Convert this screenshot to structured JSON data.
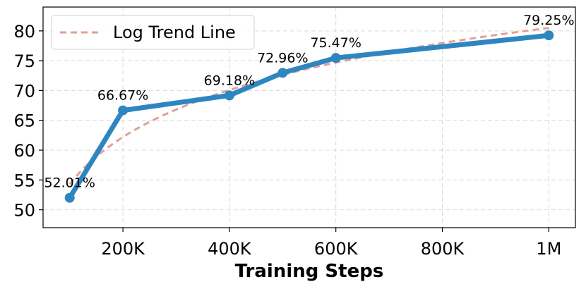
{
  "chart_data": {
    "type": "line",
    "xlabel": "Training Steps",
    "ylabel": "",
    "x_ticks": [
      {
        "value": 200000,
        "label": "200K"
      },
      {
        "value": 400000,
        "label": "400K"
      },
      {
        "value": 600000,
        "label": "600K"
      },
      {
        "value": 800000,
        "label": "800K"
      },
      {
        "value": 1000000,
        "label": "1M"
      }
    ],
    "y_ticks": [
      50,
      55,
      60,
      65,
      70,
      75,
      80
    ],
    "xlim": [
      50000,
      1050000
    ],
    "ylim": [
      47,
      84
    ],
    "grid": true,
    "legend_position": "top-left",
    "series": [
      {
        "color": "#2e86c1",
        "x": [
          100000,
          200000,
          400000,
          500000,
          600000,
          1000000
        ],
        "y": [
          52.01,
          66.67,
          69.18,
          72.96,
          75.47,
          79.25
        ],
        "labels": [
          "52.01%",
          "66.67%",
          "69.18%",
          "72.96%",
          "75.47%",
          "79.25%"
        ]
      },
      {
        "name": "Log Trend Line",
        "style": "dashed",
        "color": "#e0a096",
        "trend": "logarithmic",
        "x": [
          100000,
          200000,
          400000,
          500000,
          600000,
          1000000
        ],
        "y": [
          54.3,
          62.2,
          70.1,
          72.6,
          74.7,
          80.5
        ]
      }
    ]
  }
}
